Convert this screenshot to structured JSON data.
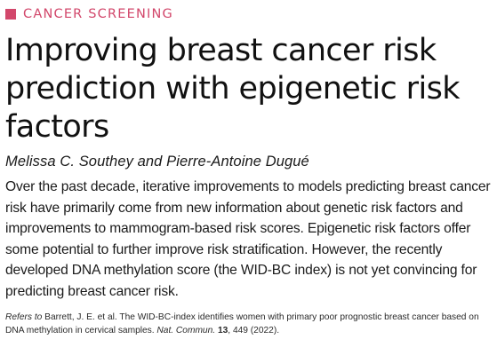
{
  "section": {
    "label": "CANCER SCREENING",
    "accent_color": "#d2476b"
  },
  "article": {
    "title": "Improving breast cancer risk prediction with epigenetic risk factors",
    "authors": "Melissa C. Southey and Pierre-Antoine Dugué",
    "abstract": "Over the past decade, iterative improvements to models predicting breast cancer risk have primarily come from new information about genetic risk factors and improvements to mammogram-based risk scores. Epigenetic risk factors offer some potential to further improve risk stratification. However, the recently developed DNA methylation score (the WID-BC index) is not yet convincing for predicting breast cancer risk."
  },
  "reference": {
    "refers_to": "Refers to",
    "citation": " Barrett, J. E. et al. The WID-BC-index identifies women with primary poor prognostic breast cancer based on DNA methylation in cervical samples. ",
    "journal": "Nat. Commun.",
    "volume": "13",
    "pages_year": ", 449 (2022)."
  }
}
